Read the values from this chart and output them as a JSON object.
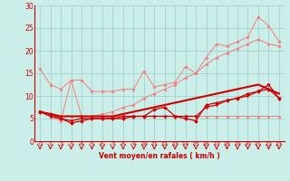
{
  "title": "",
  "xlabel": "Vent moyen/en rafales ( km/h )",
  "x": [
    0,
    1,
    2,
    3,
    4,
    5,
    6,
    7,
    8,
    9,
    10,
    11,
    12,
    13,
    14,
    15,
    16,
    17,
    18,
    19,
    20,
    21,
    22,
    23
  ],
  "line_pale1": [
    6.5,
    5.5,
    4.5,
    13.5,
    5.5,
    5.5,
    5.5,
    5.5,
    5.5,
    5.5,
    5.5,
    5.5,
    5.5,
    5.5,
    5.5,
    5.5,
    5.5,
    5.5,
    5.5,
    5.5,
    5.5,
    5.5,
    5.5,
    5.5
  ],
  "line_pale2": [
    6.5,
    6.0,
    5.5,
    5.5,
    5.5,
    5.5,
    6.0,
    6.5,
    7.5,
    8.0,
    9.5,
    10.5,
    11.5,
    12.5,
    14.0,
    15.0,
    17.0,
    18.5,
    19.5,
    20.5,
    21.5,
    22.5,
    21.5,
    21.0
  ],
  "line_pale3": [
    16.0,
    12.5,
    11.5,
    13.5,
    13.5,
    11.0,
    11.0,
    11.0,
    11.5,
    11.5,
    15.5,
    12.0,
    12.5,
    13.0,
    16.5,
    15.0,
    18.5,
    21.5,
    21.0,
    22.0,
    23.0,
    27.5,
    25.5,
    22.0
  ],
  "line_dark1": [
    6.5,
    5.5,
    5.0,
    4.5,
    5.0,
    5.0,
    5.0,
    5.0,
    5.5,
    5.5,
    5.5,
    5.5,
    5.5,
    5.5,
    5.5,
    5.5,
    7.5,
    8.0,
    9.0,
    9.5,
    10.0,
    11.0,
    12.5,
    9.5
  ],
  "line_dark2": [
    6.5,
    6.0,
    5.0,
    4.0,
    4.5,
    5.0,
    5.0,
    5.0,
    5.0,
    5.5,
    5.5,
    7.0,
    7.5,
    5.5,
    5.0,
    4.5,
    8.0,
    8.5,
    9.0,
    9.5,
    10.5,
    11.0,
    11.5,
    9.5
  ],
  "line_dark3": [
    6.5,
    6.0,
    5.5,
    5.5,
    5.5,
    5.5,
    5.5,
    5.5,
    6.0,
    6.5,
    7.0,
    7.5,
    8.0,
    8.5,
    9.0,
    9.5,
    10.0,
    10.5,
    11.0,
    11.5,
    12.0,
    12.5,
    11.5,
    10.5
  ],
  "ylim": [
    0,
    30
  ],
  "yticks": [
    0,
    5,
    10,
    15,
    20,
    25,
    30
  ],
  "xticks": [
    0,
    1,
    2,
    3,
    4,
    5,
    6,
    7,
    8,
    9,
    10,
    11,
    12,
    13,
    14,
    15,
    16,
    17,
    18,
    19,
    20,
    21,
    22,
    23
  ],
  "bg_color": "#cceee8",
  "grid_color": "#99cccc",
  "pale_color": "#f08080",
  "dark_color": "#cc0000",
  "arrow_color": "#cc0000",
  "tick_color": "#cc0000",
  "label_color": "#cc0000"
}
